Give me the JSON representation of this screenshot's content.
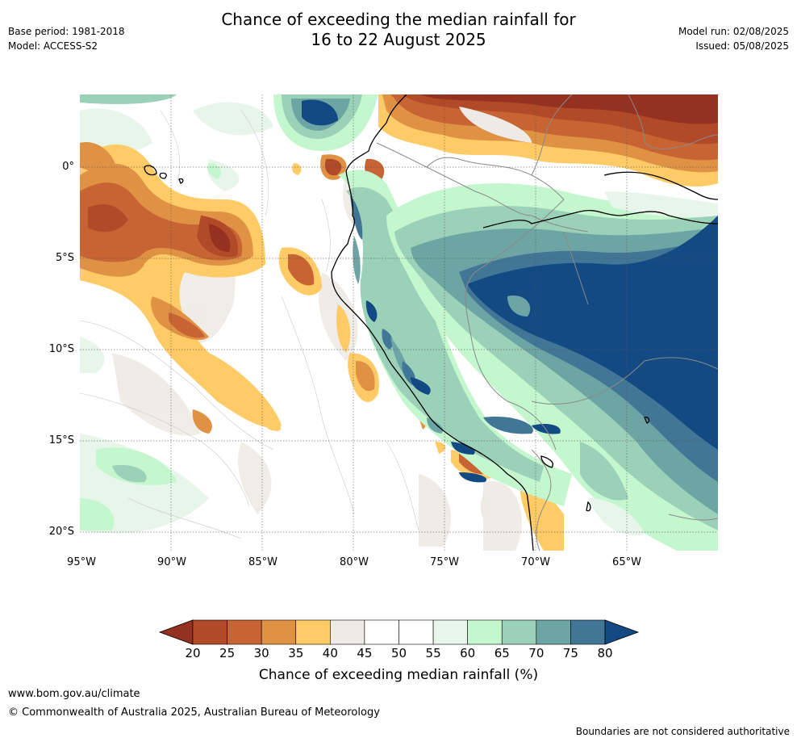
{
  "title_line1": "Chance of exceeding the median rainfall for",
  "title_line2": "16 to 22 August 2025",
  "base_period": "Base period: 1981-2018",
  "model": "Model: ACCESS-S2",
  "model_run": "Model run: 02/08/2025",
  "issued": "Issued: 05/08/2025",
  "lat_labels": [
    "0°",
    "5°S",
    "10°S",
    "15°S",
    "20°S"
  ],
  "lon_labels": [
    "95°W",
    "90°W",
    "85°W",
    "80°W",
    "75°W",
    "70°W",
    "65°W"
  ],
  "colorbar": {
    "title": "Chance of exceeding median rainfall (%)",
    "ticks": [
      "20",
      "25",
      "30",
      "35",
      "40",
      "45",
      "50",
      "55",
      "60",
      "65",
      "70",
      "75",
      "80"
    ],
    "colors": [
      "#953120",
      "#b14a28",
      "#c86333",
      "#e09244",
      "#fecb67",
      "#eeebe6",
      "#ffffff",
      "#ffffff",
      "#e8f5ea",
      "#c4f7cd",
      "#9bd0b9",
      "#6da4a4",
      "#417696",
      "#134a83"
    ]
  },
  "footer_url": "www.bom.gov.au/climate",
  "copyright": "© Commonwealth of Australia 2025, Australian Bureau of Meteorology",
  "disclaimer": "Boundaries are not considered authoritative"
}
